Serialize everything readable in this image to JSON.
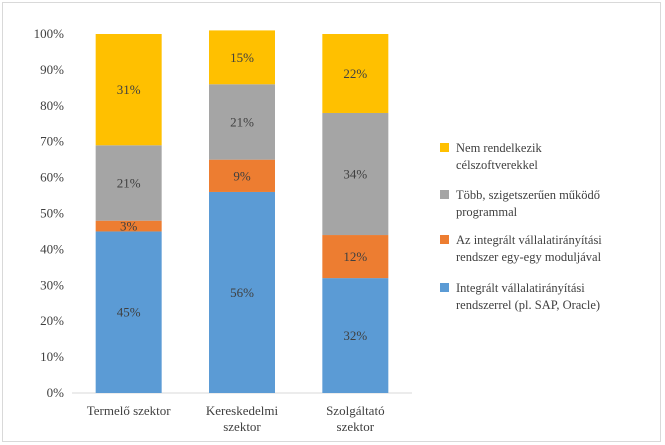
{
  "chart_data": {
    "type": "bar",
    "stacked": true,
    "categories": [
      "Termelő szektor",
      "Kereskedelmi szektor",
      "Szolgáltató szektor"
    ],
    "series": [
      {
        "name": "Integrált vállalatirányítási rendszerrel (pl. SAP, Oracle)",
        "color": "#5b9bd5",
        "values": [
          45,
          56,
          32
        ]
      },
      {
        "name": "Az integrált vállalatirányítási rendszer egy-egy moduljával",
        "color": "#ed7d31",
        "values": [
          3,
          9,
          12
        ]
      },
      {
        "name": "Több, szigetszerűen működő programmal",
        "color": "#a5a5a5",
        "values": [
          21,
          21,
          34
        ]
      },
      {
        "name": "Nem rendelkezik célszoftverekkel",
        "color": "#ffc000",
        "values": [
          31,
          15,
          22
        ]
      }
    ],
    "data_labels": [
      [
        "45%",
        "56%",
        "32%"
      ],
      [
        "3%",
        "9%",
        "12%"
      ],
      [
        "21%",
        "21%",
        "34%"
      ],
      [
        "31%",
        "15%",
        "22%"
      ]
    ],
    "y_ticks": [
      "0%",
      "10%",
      "20%",
      "30%",
      "40%",
      "50%",
      "60%",
      "70%",
      "80%",
      "90%",
      "100%"
    ],
    "ylim": [
      0,
      100
    ],
    "grid": false,
    "legend_position": "right"
  }
}
